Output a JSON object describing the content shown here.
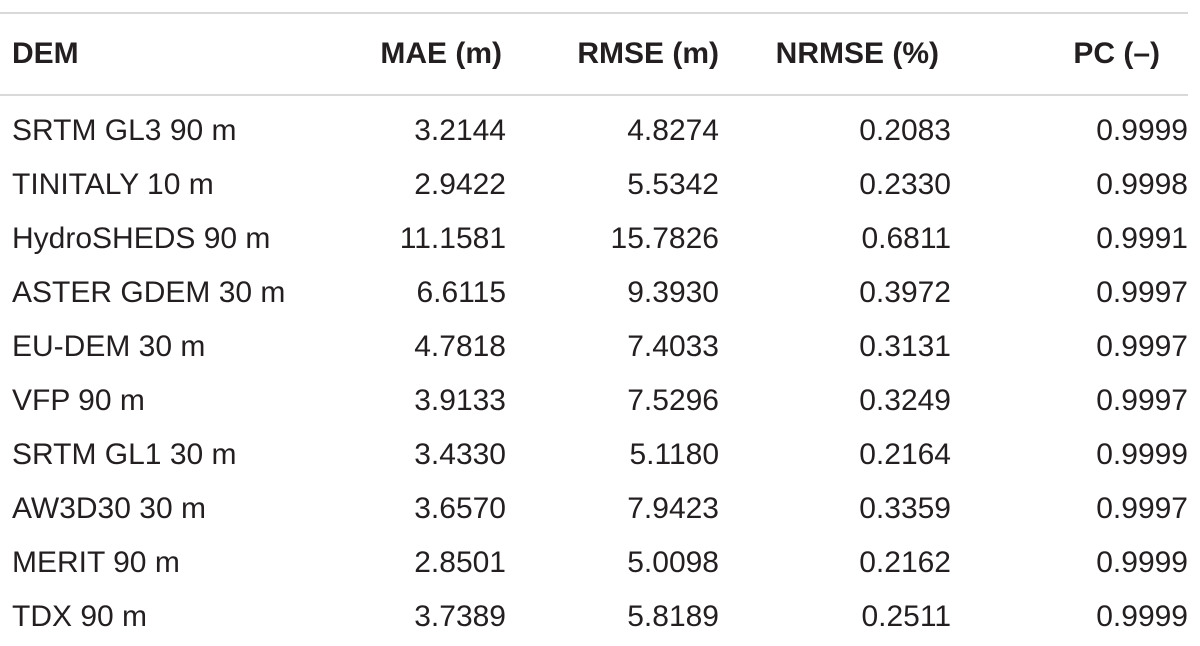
{
  "table": {
    "headers": {
      "dem": "DEM",
      "mae": "MAE (m)",
      "rmse": "RMSE (m)",
      "nrmse": "NRMSE (%)",
      "pc": "PC (–)"
    },
    "rows": [
      {
        "dem": "SRTM GL3 90 m",
        "mae": "3.2144",
        "rmse": "4.8274",
        "nrmse": "0.2083",
        "pc": "0.9999"
      },
      {
        "dem": "TINITALY 10 m",
        "mae": "2.9422",
        "rmse": "5.5342",
        "nrmse": "0.2330",
        "pc": "0.9998"
      },
      {
        "dem": "HydroSHEDS 90 m",
        "mae": "11.1581",
        "rmse": "15.7826",
        "nrmse": "0.6811",
        "pc": "0.9991"
      },
      {
        "dem": "ASTER GDEM 30 m",
        "mae": "6.6115",
        "rmse": "9.3930",
        "nrmse": "0.3972",
        "pc": "0.9997"
      },
      {
        "dem": "EU-DEM 30 m",
        "mae": "4.7818",
        "rmse": "7.4033",
        "nrmse": "0.3131",
        "pc": "0.9997"
      },
      {
        "dem": "VFP 90 m",
        "mae": "3.9133",
        "rmse": "7.5296",
        "nrmse": "0.3249",
        "pc": "0.9997"
      },
      {
        "dem": "SRTM GL1 30 m",
        "mae": "3.4330",
        "rmse": "5.1180",
        "nrmse": "0.2164",
        "pc": "0.9999"
      },
      {
        "dem": "AW3D30 30 m",
        "mae": "3.6570",
        "rmse": "7.9423",
        "nrmse": "0.3359",
        "pc": "0.9997"
      },
      {
        "dem": "MERIT 90 m",
        "mae": "2.8501",
        "rmse": "5.0098",
        "nrmse": "0.2162",
        "pc": "0.9999"
      },
      {
        "dem": "TDX 90 m",
        "mae": "3.7389",
        "rmse": "5.8189",
        "nrmse": "0.2511",
        "pc": "0.9999"
      }
    ]
  }
}
